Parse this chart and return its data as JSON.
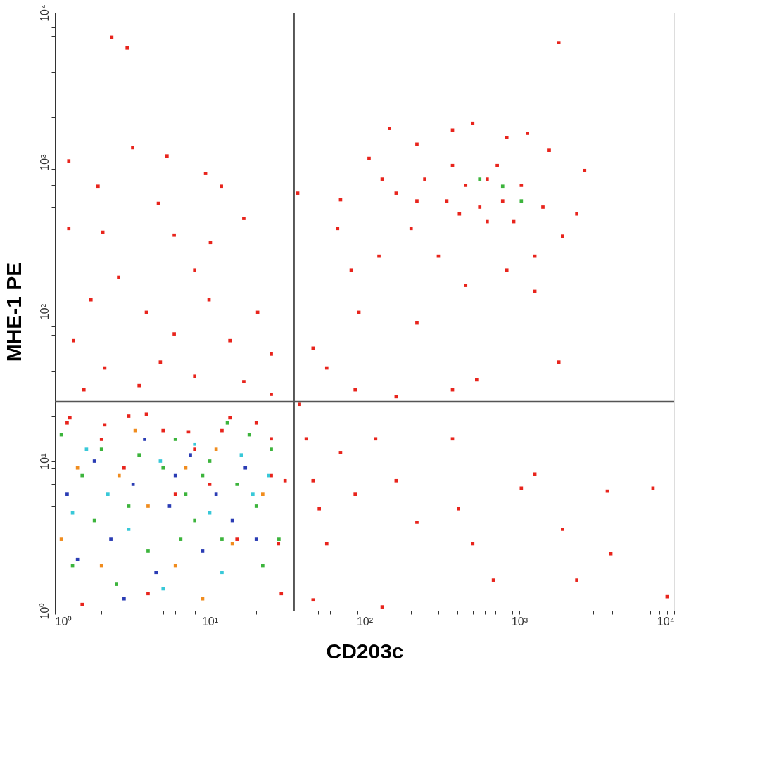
{
  "chart_data": {
    "type": "scatter",
    "xlabel": "CD203c",
    "ylabel": "MHE-1 PE",
    "log": "xy",
    "grid": false,
    "marker": "square",
    "xlim": [
      1,
      10000
    ],
    "ylim": [
      1,
      10000
    ],
    "xticks": [
      {
        "value": 1,
        "label": "10⁰"
      },
      {
        "value": 2,
        "label": null
      },
      {
        "value": 3,
        "label": null
      },
      {
        "value": 4,
        "label": null
      },
      {
        "value": 5,
        "label": null
      },
      {
        "value": 6,
        "label": null
      },
      {
        "value": 7,
        "label": null
      },
      {
        "value": 8,
        "label": null
      },
      {
        "value": 9,
        "label": null
      },
      {
        "value": 10,
        "label": "10¹"
      },
      {
        "value": 20,
        "label": null
      },
      {
        "value": 30,
        "label": null
      },
      {
        "value": 40,
        "label": null
      },
      {
        "value": 50,
        "label": null
      },
      {
        "value": 60,
        "label": null
      },
      {
        "value": 70,
        "label": null
      },
      {
        "value": 80,
        "label": null
      },
      {
        "value": 90,
        "label": null
      },
      {
        "value": 100,
        "label": "10²"
      },
      {
        "value": 200,
        "label": null
      },
      {
        "value": 300,
        "label": null
      },
      {
        "value": 400,
        "label": null
      },
      {
        "value": 500,
        "label": null
      },
      {
        "value": 600,
        "label": null
      },
      {
        "value": 700,
        "label": null
      },
      {
        "value": 800,
        "label": null
      },
      {
        "value": 900,
        "label": null
      },
      {
        "value": 1000,
        "label": "10³"
      },
      {
        "value": 2000,
        "label": null
      },
      {
        "value": 3000,
        "label": null
      },
      {
        "value": 4000,
        "label": null
      },
      {
        "value": 5000,
        "label": null
      },
      {
        "value": 6000,
        "label": null
      },
      {
        "value": 7000,
        "label": null
      },
      {
        "value": 8000,
        "label": null
      },
      {
        "value": 9000,
        "label": null
      },
      {
        "value": 10000,
        "label": "10⁴"
      }
    ],
    "yticks": [
      {
        "value": 1,
        "label": "10⁰"
      },
      {
        "value": 2,
        "label": null
      },
      {
        "value": 3,
        "label": null
      },
      {
        "value": 4,
        "label": null
      },
      {
        "value": 5,
        "label": null
      },
      {
        "value": 6,
        "label": null
      },
      {
        "value": 7,
        "label": null
      },
      {
        "value": 8,
        "label": null
      },
      {
        "value": 9,
        "label": null
      },
      {
        "value": 10,
        "label": "10¹"
      },
      {
        "value": 20,
        "label": null
      },
      {
        "value": 30,
        "label": null
      },
      {
        "value": 40,
        "label": null
      },
      {
        "value": 50,
        "label": null
      },
      {
        "value": 60,
        "label": null
      },
      {
        "value": 70,
        "label": null
      },
      {
        "value": 80,
        "label": null
      },
      {
        "value": 90,
        "label": null
      },
      {
        "value": 100,
        "label": "10²"
      },
      {
        "value": 200,
        "label": null
      },
      {
        "value": 300,
        "label": null
      },
      {
        "value": 400,
        "label": null
      },
      {
        "value": 500,
        "label": null
      },
      {
        "value": 600,
        "label": null
      },
      {
        "value": 700,
        "label": null
      },
      {
        "value": 800,
        "label": null
      },
      {
        "value": 900,
        "label": null
      },
      {
        "value": 1000,
        "label": "10³"
      },
      {
        "value": 2000,
        "label": null
      },
      {
        "value": 3000,
        "label": null
      },
      {
        "value": 4000,
        "label": null
      },
      {
        "value": 5000,
        "label": null
      },
      {
        "value": 6000,
        "label": null
      },
      {
        "value": 7000,
        "label": null
      },
      {
        "value": 8000,
        "label": null
      },
      {
        "value": 9000,
        "label": null
      },
      {
        "value": 10000,
        "label": "10⁴"
      }
    ],
    "ref_lines": [
      {
        "axis": "x",
        "value": 35,
        "color": "#555555"
      },
      {
        "axis": "y",
        "value": 25,
        "color": "#555555"
      }
    ],
    "series": [
      {
        "color": "#e8241c",
        "x": [
          2.33,
          2.93,
          1.23,
          3.18,
          5.3,
          1.9,
          1.23,
          2.04,
          9.4,
          11.9,
          4.66,
          16.6,
          5.9,
          10.1,
          8,
          2.58,
          1.71,
          3.9,
          5.9,
          9.9,
          20.4,
          1.32,
          13.5,
          25,
          2.1,
          4.8,
          8,
          16.6,
          1.54,
          3.5,
          25,
          1.25,
          2.1,
          3.9,
          7.3,
          13.5,
          25,
          30.7,
          27.8,
          29,
          42,
          46.5,
          51,
          57,
          70,
          87,
          118,
          160,
          218,
          370,
          405,
          500,
          680,
          1030,
          1260,
          1900,
          2350,
          3700,
          7300,
          9000,
          3900,
          46.5,
          130,
          38,
          145,
          218,
          370,
          500,
          830,
          1130,
          1560,
          2640,
          2350,
          1900,
          1260,
          830,
          450,
          300,
          200,
          160,
          245,
          340,
          450,
          620,
          780,
          1030,
          1420,
          620,
          410,
          720,
          370,
          218,
          124,
          1800,
          1800,
          1260,
          130,
          555,
          920,
          37,
          70,
          82,
          92,
          218,
          107,
          67,
          57,
          87,
          370,
          530,
          46.5,
          160,
          1.2,
          2,
          3,
          5,
          8,
          12,
          20,
          6,
          10,
          15,
          4,
          25,
          1.5,
          2.8
        ],
        "values": [
          6850,
          5800,
          1020,
          1250,
          1100,
          690,
          360,
          340,
          840,
          690,
          530,
          420,
          325,
          290,
          190,
          170,
          120,
          99,
          71,
          120,
          99,
          64,
          64,
          52,
          42,
          46,
          37,
          34,
          30,
          32,
          28,
          19.5,
          17.5,
          20.6,
          15.7,
          19.5,
          14.1,
          7.4,
          2.8,
          1.3,
          14.1,
          7.4,
          4.8,
          2.8,
          11.4,
          6,
          14.1,
          7.4,
          3.9,
          14.1,
          4.8,
          2.8,
          1.6,
          6.6,
          8.2,
          3.5,
          1.6,
          6.3,
          6.6,
          1.24,
          2.4,
          1.18,
          1.06,
          24,
          1680,
          1320,
          1640,
          1820,
          1460,
          1560,
          1200,
          880,
          450,
          320,
          235,
          190,
          150,
          235,
          360,
          620,
          770,
          550,
          700,
          770,
          550,
          700,
          500,
          400,
          450,
          950,
          950,
          550,
          235,
          6300,
          46,
          137,
          770,
          500,
          400,
          620,
          560,
          190,
          99,
          84,
          1060,
          360,
          42,
          30,
          30,
          35,
          57,
          27,
          18,
          14,
          20,
          16,
          12,
          16,
          18,
          6,
          7,
          3,
          1.3,
          8,
          1.1,
          9
        ]
      },
      {
        "color": "#3cb43c",
        "x": [
          555,
          780,
          1030,
          1.1,
          1.5,
          2,
          3,
          5,
          7,
          8,
          10,
          12,
          15,
          20,
          25,
          28,
          1.3,
          2.5,
          4,
          6,
          9,
          18,
          22,
          3.5,
          13,
          1.8,
          6.5
        ],
        "values": [
          770,
          690,
          550,
          15,
          8,
          12,
          5,
          9,
          6,
          4,
          10,
          3,
          7,
          5,
          12,
          3,
          2,
          1.5,
          2.5,
          14,
          8,
          15,
          2,
          11,
          18,
          4,
          3
        ]
      },
      {
        "color": "#2a3cb4",
        "x": [
          1.2,
          1.8,
          2.3,
          3.2,
          4.5,
          5.5,
          7.5,
          9,
          11,
          14,
          17,
          2.8,
          1.4,
          6,
          20,
          3.8
        ],
        "values": [
          6,
          10,
          3,
          7,
          1.8,
          5,
          11,
          2.5,
          6,
          4,
          9,
          1.2,
          2.2,
          8,
          3,
          14
        ]
      },
      {
        "color": "#38c8d8",
        "x": [
          1.6,
          2.2,
          3,
          4.8,
          8,
          10,
          16,
          19,
          1.3,
          24,
          5,
          12
        ],
        "values": [
          12,
          6,
          3.5,
          10,
          13,
          4.5,
          11,
          6,
          4.5,
          8,
          1.4,
          1.8
        ]
      },
      {
        "color": "#f08c1e",
        "x": [
          1.4,
          2,
          2.6,
          4,
          6,
          7,
          11,
          14,
          22,
          1.1,
          3.3,
          9
        ],
        "values": [
          9,
          2,
          8,
          5,
          2,
          9,
          12,
          2.8,
          6,
          3,
          16,
          1.2
        ]
      }
    ]
  }
}
